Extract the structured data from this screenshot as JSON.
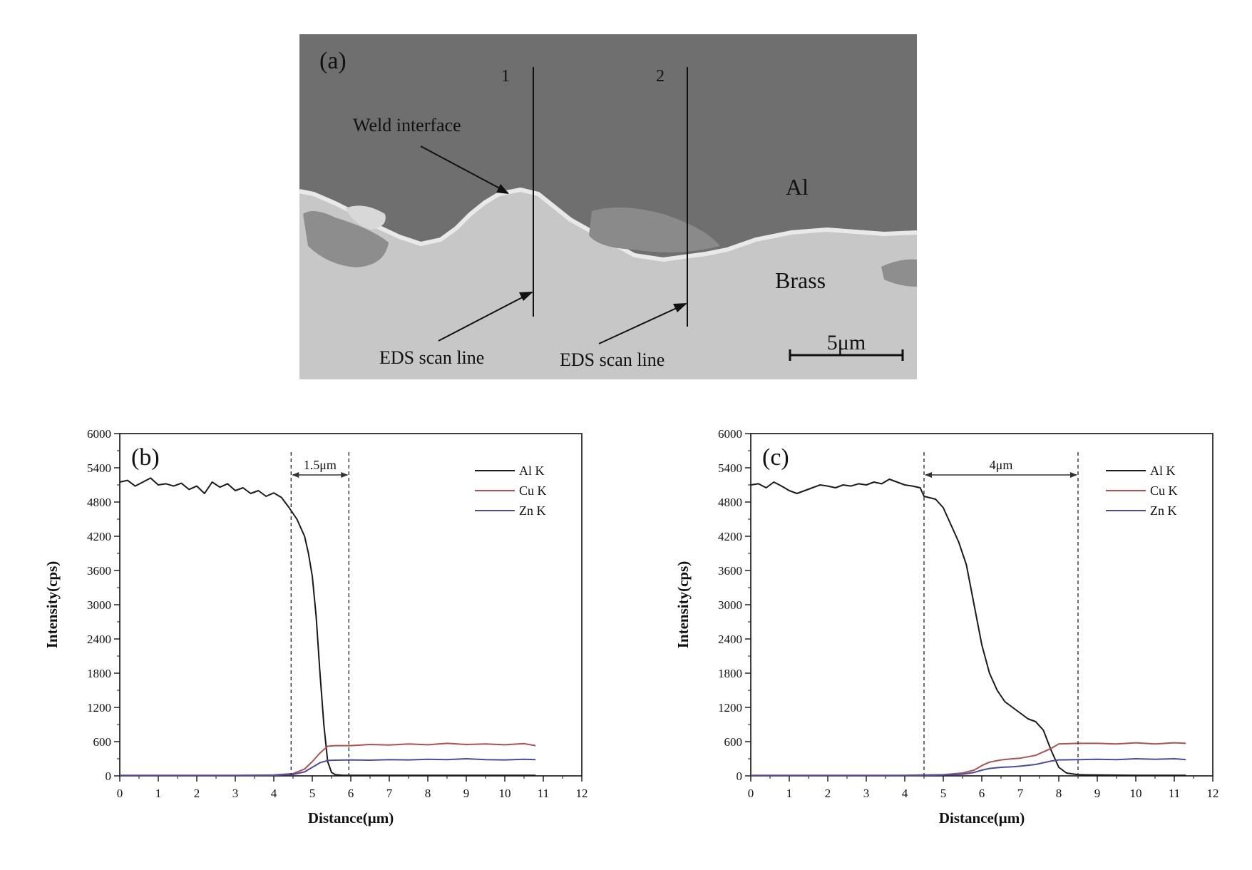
{
  "panel_a": {
    "label": "(a)",
    "line1_label": "1",
    "line2_label": "2",
    "weld_interface_label": "Weld interface",
    "al_label": "Al",
    "brass_label": "Brass",
    "eds_label_1": "EDS scan line",
    "eds_label_2": "EDS scan line",
    "scale_label": "5μm",
    "colors": {
      "al_region": "#6f6f6f",
      "brass_region": "#c9c9c9",
      "interface_edge": "#e6e6e6"
    }
  },
  "chart_data": [
    {
      "type": "line",
      "panel_label": "(b)",
      "xlabel": "Distance(μm)",
      "ylabel": "Intensity(cps)",
      "xlim": [
        0,
        12
      ],
      "ylim": [
        0,
        6000
      ],
      "xticks": [
        0,
        1,
        2,
        3,
        4,
        5,
        6,
        7,
        8,
        9,
        10,
        11,
        12
      ],
      "yticks": [
        0,
        600,
        1200,
        1800,
        2400,
        3000,
        3600,
        4200,
        4800,
        5400,
        6000
      ],
      "grid": false,
      "legend": "top-right",
      "annotation": {
        "text": "1.5μm",
        "x_start": 4.45,
        "x_end": 5.95
      },
      "series": [
        {
          "name": "Al K",
          "color": "#1a1a1a",
          "x": [
            0,
            0.2,
            0.4,
            0.6,
            0.8,
            1.0,
            1.2,
            1.4,
            1.6,
            1.8,
            2.0,
            2.2,
            2.4,
            2.6,
            2.8,
            3.0,
            3.2,
            3.4,
            3.6,
            3.8,
            4.0,
            4.2,
            4.4,
            4.6,
            4.8,
            4.9,
            5.0,
            5.1,
            5.2,
            5.3,
            5.4,
            5.5,
            5.6,
            5.8,
            6.0,
            7.0,
            8.0,
            9.0,
            10.0,
            10.8
          ],
          "y": [
            5150,
            5180,
            5080,
            5150,
            5220,
            5100,
            5120,
            5080,
            5130,
            5020,
            5080,
            4950,
            5150,
            5060,
            5120,
            5000,
            5050,
            4950,
            5000,
            4900,
            4960,
            4880,
            4700,
            4500,
            4200,
            3900,
            3500,
            2800,
            1800,
            900,
            250,
            60,
            20,
            10,
            10,
            10,
            10,
            10,
            10,
            10
          ]
        },
        {
          "name": "Cu K",
          "color": "#b05050",
          "x": [
            0,
            1,
            2,
            3,
            4,
            4.5,
            4.8,
            5.0,
            5.2,
            5.4,
            5.6,
            6.0,
            6.5,
            7.0,
            7.5,
            8.0,
            8.5,
            9.0,
            9.5,
            10.0,
            10.5,
            10.8
          ],
          "y": [
            10,
            10,
            10,
            10,
            15,
            40,
            120,
            250,
            400,
            520,
            530,
            530,
            550,
            540,
            560,
            545,
            570,
            550,
            560,
            545,
            565,
            530
          ]
        },
        {
          "name": "Zn K",
          "color": "#4a4aa8",
          "x": [
            0,
            1,
            2,
            3,
            4,
            4.5,
            4.8,
            5.0,
            5.2,
            5.4,
            5.6,
            6.0,
            6.5,
            7.0,
            7.5,
            8.0,
            8.5,
            9.0,
            9.5,
            10.0,
            10.5,
            10.8
          ],
          "y": [
            5,
            5,
            5,
            5,
            10,
            25,
            70,
            150,
            230,
            270,
            275,
            280,
            275,
            285,
            280,
            290,
            285,
            300,
            285,
            280,
            290,
            285
          ]
        }
      ]
    },
    {
      "type": "line",
      "panel_label": "(c)",
      "xlabel": "Distance(μm)",
      "ylabel": "Intensity(cps)",
      "xlim": [
        0,
        12
      ],
      "ylim": [
        0,
        6000
      ],
      "xticks": [
        0,
        1,
        2,
        3,
        4,
        5,
        6,
        7,
        8,
        9,
        10,
        11,
        12
      ],
      "yticks": [
        0,
        600,
        1200,
        1800,
        2400,
        3000,
        3600,
        4200,
        4800,
        5400,
        6000
      ],
      "grid": false,
      "legend": "top-right",
      "annotation": {
        "text": "4μm",
        "x_start": 4.5,
        "x_end": 8.5
      },
      "series": [
        {
          "name": "Al K",
          "color": "#1a1a1a",
          "x": [
            0,
            0.2,
            0.4,
            0.6,
            0.8,
            1.0,
            1.2,
            1.4,
            1.6,
            1.8,
            2.0,
            2.2,
            2.4,
            2.6,
            2.8,
            3.0,
            3.2,
            3.4,
            3.6,
            3.8,
            4.0,
            4.2,
            4.4,
            4.5,
            4.8,
            5.0,
            5.2,
            5.4,
            5.6,
            5.8,
            6.0,
            6.2,
            6.4,
            6.6,
            6.8,
            7.0,
            7.2,
            7.4,
            7.6,
            7.8,
            8.0,
            8.2,
            8.5,
            9.0,
            10.0,
            11.0,
            11.3
          ],
          "y": [
            5100,
            5120,
            5050,
            5150,
            5080,
            5000,
            4950,
            5000,
            5050,
            5100,
            5080,
            5050,
            5100,
            5080,
            5120,
            5100,
            5150,
            5120,
            5200,
            5150,
            5100,
            5080,
            5050,
            4900,
            4850,
            4700,
            4400,
            4100,
            3700,
            3000,
            2300,
            1800,
            1500,
            1300,
            1200,
            1100,
            1000,
            950,
            800,
            450,
            150,
            50,
            20,
            15,
            10,
            10,
            10
          ]
        },
        {
          "name": "Cu K",
          "color": "#b05050",
          "x": [
            0,
            1,
            2,
            3,
            4,
            4.5,
            5.0,
            5.5,
            5.8,
            6.0,
            6.2,
            6.5,
            6.8,
            7.0,
            7.4,
            7.8,
            8.0,
            8.5,
            9.0,
            9.5,
            10.0,
            10.5,
            11.0,
            11.3
          ],
          "y": [
            10,
            10,
            10,
            10,
            10,
            15,
            20,
            50,
            100,
            180,
            240,
            280,
            300,
            310,
            360,
            480,
            560,
            570,
            570,
            560,
            580,
            560,
            580,
            570
          ]
        },
        {
          "name": "Zn K",
          "color": "#4a4aa8",
          "x": [
            0,
            1,
            2,
            3,
            4,
            4.5,
            5.0,
            5.5,
            5.8,
            6.0,
            6.2,
            6.5,
            6.8,
            7.0,
            7.4,
            7.8,
            8.0,
            8.5,
            9.0,
            9.5,
            10.0,
            10.5,
            11.0,
            11.3
          ],
          "y": [
            5,
            5,
            5,
            5,
            5,
            10,
            15,
            30,
            60,
            100,
            130,
            150,
            160,
            170,
            200,
            260,
            280,
            285,
            290,
            285,
            300,
            290,
            300,
            285
          ]
        }
      ]
    }
  ]
}
